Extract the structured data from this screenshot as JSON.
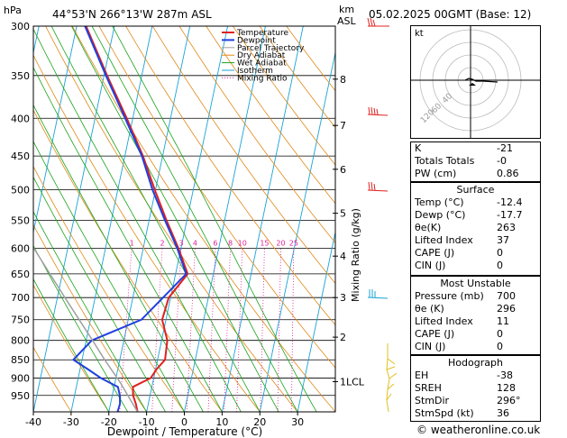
{
  "header": {
    "unit_left": "hPa",
    "location": "44°53'N  266°13'W  287m  ASL",
    "km_label": "km",
    "asl_label": "ASL",
    "datetime": "05.02.2025  00GMT  (Base: 12)"
  },
  "chart_data": {
    "type": "line",
    "title": "",
    "xlabel": "Dewpoint / Temperature (°C)",
    "ylabel": "",
    "right_label": "Mixing Ratio (g/kg)",
    "xlim": [
      -40,
      40
    ],
    "ylim": [
      1000,
      300
    ],
    "skew_per_decade": 172,
    "pressure_ticks": [
      300,
      350,
      400,
      450,
      500,
      550,
      600,
      650,
      700,
      750,
      800,
      850,
      900,
      950
    ],
    "temp_ticks": [
      -40,
      -30,
      -20,
      -10,
      0,
      10,
      20,
      30
    ],
    "height_ticks": [
      {
        "label": "8",
        "p": 354
      },
      {
        "label": "7",
        "p": 409
      },
      {
        "label": "6",
        "p": 469
      },
      {
        "label": "5",
        "p": 538
      },
      {
        "label": "4",
        "p": 615
      },
      {
        "label": "3",
        "p": 700
      },
      {
        "label": "2",
        "p": 792
      },
      {
        "label": "1LCL",
        "p": 910
      }
    ],
    "mixing_ratio_labels": [
      "1",
      "2",
      "3",
      "4",
      "6",
      "8",
      "10",
      "15",
      "20",
      "25"
    ],
    "mixing_ratio_values": [
      1,
      2,
      3,
      4,
      6,
      8,
      10,
      15,
      20,
      25
    ],
    "legend": [
      "Temperature",
      "Dewpoint",
      "Parcel Trajectory",
      "Dry Adiabat",
      "Wet Adiabat",
      "Isotherm",
      "Mixing Ratio"
    ],
    "series": [
      {
        "name": "Temperature",
        "color": "#e02020",
        "points": [
          [
            1000,
            -12.4
          ],
          [
            975,
            -13.3
          ],
          [
            950,
            -14.5
          ],
          [
            925,
            -15.0
          ],
          [
            900,
            -10.8
          ],
          [
            875,
            -9.7
          ],
          [
            850,
            -8.0
          ],
          [
            800,
            -8.5
          ],
          [
            750,
            -11.0
          ],
          [
            700,
            -10.5
          ],
          [
            650,
            -6.8
          ],
          [
            600,
            -10.7
          ],
          [
            550,
            -15.4
          ],
          [
            500,
            -20.2
          ],
          [
            450,
            -25.2
          ],
          [
            400,
            -31.6
          ],
          [
            350,
            -39.2
          ],
          [
            300,
            -47.5
          ]
        ]
      },
      {
        "name": "Dewpoint",
        "color": "#2040e0",
        "points": [
          [
            1000,
            -17.7
          ],
          [
            975,
            -17.5
          ],
          [
            950,
            -18.0
          ],
          [
            925,
            -19.0
          ],
          [
            900,
            -24.0
          ],
          [
            875,
            -28.0
          ],
          [
            850,
            -32.3
          ],
          [
            800,
            -28.5
          ],
          [
            750,
            -16.5
          ],
          [
            700,
            -12.0
          ],
          [
            650,
            -7.2
          ],
          [
            600,
            -11.0
          ],
          [
            550,
            -15.8
          ],
          [
            500,
            -20.8
          ],
          [
            450,
            -25.5
          ],
          [
            400,
            -32.0
          ],
          [
            350,
            -39.5
          ],
          [
            300,
            -47.8
          ]
        ]
      },
      {
        "name": "Parcel Trajectory",
        "color": "#a0a0a0",
        "points": [
          [
            1000,
            -12.4
          ],
          [
            910,
            -18.8
          ],
          [
            850,
            -24.0
          ],
          [
            800,
            -28.3
          ],
          [
            750,
            -33.0
          ],
          [
            700,
            -38.0
          ],
          [
            650,
            -43.3
          ],
          [
            600,
            -49.0
          ],
          [
            550,
            -55.2
          ],
          [
            500,
            -62.0
          ],
          [
            450,
            -69.5
          ],
          [
            400,
            -77.8
          ]
        ]
      }
    ]
  },
  "hodograph": {
    "label": "kt",
    "ring_labels": [
      "40",
      "60",
      "120"
    ]
  },
  "stats": {
    "k": {
      "label": "K",
      "value": "-21"
    },
    "tt": {
      "label": "Totals Totals",
      "value": "-0"
    },
    "pw": {
      "label": "PW (cm)",
      "value": "0.86"
    }
  },
  "surface": {
    "title": "Surface",
    "temp": {
      "label": "Temp (°C)",
      "value": "-12.4"
    },
    "dewp": {
      "label": "Dewp (°C)",
      "value": "-17.7"
    },
    "theta": {
      "label": "θe(K)",
      "value": "263"
    },
    "li": {
      "label": "Lifted Index",
      "value": "37"
    },
    "cape": {
      "label": "CAPE (J)",
      "value": "0"
    },
    "cin": {
      "label": "CIN (J)",
      "value": "0"
    }
  },
  "most_unstable": {
    "title": "Most Unstable",
    "pressure": {
      "label": "Pressure (mb)",
      "value": "700"
    },
    "theta": {
      "label": "θe (K)",
      "value": "296"
    },
    "li": {
      "label": "Lifted Index",
      "value": "11"
    },
    "cape": {
      "label": "CAPE (J)",
      "value": "0"
    },
    "cin": {
      "label": "CIN (J)",
      "value": "0"
    }
  },
  "hodo_stats": {
    "title": "Hodograph",
    "eh": {
      "label": "EH",
      "value": "-38"
    },
    "srh": {
      "label": "SREH",
      "value": "128"
    },
    "dir": {
      "label": "StmDir",
      "value": "296°"
    },
    "spd": {
      "label": "StmSpd (kt)",
      "value": "36"
    }
  },
  "footer": {
    "copyright": "© weatheronline.co.uk"
  },
  "colors": {
    "temperature": "#e02020",
    "dewpoint": "#2040e0",
    "parcel": "#a0a0a0",
    "dry_adiabat": "#e08a1a",
    "wet_adiabat": "#1aa31a",
    "isotherm": "#19a3d6",
    "mixing_ratio": "#e0209a",
    "wind_barb_upper": "#e02020",
    "wind_barb_mid": "#19a3d6",
    "wind_barb_low": "#e0c020"
  }
}
